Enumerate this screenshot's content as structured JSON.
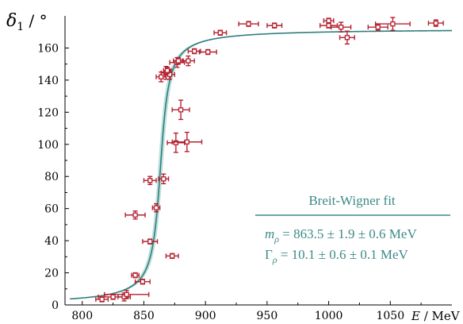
{
  "colors": {
    "points": "#b5202f",
    "fit_curve": "#2f7f7c",
    "fit_band": "#9ccfcb",
    "legend_text": "#3d8a86",
    "axis": "#000000"
  },
  "legend": {
    "title": "Breit-Wigner fit",
    "m_symbol": "m",
    "m_sub": "ρ",
    "m_value": " = 863.5 ± 1.9 ± 0.6 MeV",
    "g_symbol": "Γ",
    "g_sub": "ρ",
    "g_value": " = 10.1 ± 0.6 ± 0.1 MeV"
  },
  "chart_data": {
    "type": "scatter",
    "title": "",
    "xlabel_symbol": "E",
    "xlabel_unit": " / MeV",
    "ylabel_symbol": "δ",
    "ylabel_sub": "1",
    "ylabel_unit": " / °",
    "xlim": [
      786,
      1100
    ],
    "ylim": [
      0,
      180
    ],
    "xticks": [
      800,
      850,
      900,
      950,
      1000,
      1050
    ],
    "yticks": [
      0,
      20,
      40,
      60,
      80,
      100,
      120,
      140,
      160
    ],
    "grid": false,
    "fit": {
      "model": "Breit-Wigner",
      "mass": 863.5,
      "width": 10.1,
      "plateau": 172
    },
    "points": [
      {
        "x": 816,
        "y": 3.5,
        "xerr": 5,
        "yerr": 1.5
      },
      {
        "x": 825,
        "y": 5,
        "xerr": 12,
        "yerr": 1.5
      },
      {
        "x": 834,
        "y": 5,
        "xerr": 5,
        "yerr": 2.5
      },
      {
        "x": 836,
        "y": 6.5,
        "xerr": 18,
        "yerr": 2.5
      },
      {
        "x": 843,
        "y": 18.5,
        "xerr": 3,
        "yerr": 1.5
      },
      {
        "x": 849,
        "y": 14.5,
        "xerr": 6,
        "yerr": 1.5
      },
      {
        "x": 843,
        "y": 56,
        "xerr": 8,
        "yerr": 2.5
      },
      {
        "x": 855,
        "y": 39.5,
        "xerr": 6,
        "yerr": 1.5
      },
      {
        "x": 855,
        "y": 77.5,
        "xerr": 5,
        "yerr": 2.5
      },
      {
        "x": 860,
        "y": 60.5,
        "xerr": 3,
        "yerr": 2.5
      },
      {
        "x": 866,
        "y": 78.5,
        "xerr": 4,
        "yerr": 3
      },
      {
        "x": 873,
        "y": 30.5,
        "xerr": 5,
        "yerr": 1.5
      },
      {
        "x": 864,
        "y": 142,
        "xerr": 4,
        "yerr": 3
      },
      {
        "x": 868,
        "y": 144.5,
        "xerr": 4,
        "yerr": 4
      },
      {
        "x": 871,
        "y": 143.5,
        "xerr": 4,
        "yerr": 3
      },
      {
        "x": 869,
        "y": 146,
        "xerr": 3,
        "yerr": 2
      },
      {
        "x": 877,
        "y": 151,
        "xerr": 6,
        "yerr": 3
      },
      {
        "x": 878,
        "y": 152,
        "xerr": 4,
        "yerr": 2
      },
      {
        "x": 880,
        "y": 121.5,
        "xerr": 7,
        "yerr": 6
      },
      {
        "x": 876,
        "y": 101,
        "xerr": 7,
        "yerr": 6
      },
      {
        "x": 885,
        "y": 101.5,
        "xerr": 12,
        "yerr": 6
      },
      {
        "x": 886,
        "y": 152,
        "xerr": 5,
        "yerr": 3
      },
      {
        "x": 891,
        "y": 158,
        "xerr": 5,
        "yerr": 1.5
      },
      {
        "x": 902,
        "y": 157.5,
        "xerr": 7,
        "yerr": 1.5
      },
      {
        "x": 912,
        "y": 169.5,
        "xerr": 5,
        "yerr": 1.5
      },
      {
        "x": 935,
        "y": 175,
        "xerr": 8,
        "yerr": 1.5
      },
      {
        "x": 956,
        "y": 174,
        "xerr": 6,
        "yerr": 1.5
      },
      {
        "x": 1000,
        "y": 177,
        "xerr": 4,
        "yerr": 1.5
      },
      {
        "x": 1000,
        "y": 174,
        "xerr": 7,
        "yerr": 1.5
      },
      {
        "x": 1010,
        "y": 173,
        "xerr": 8,
        "yerr": 3
      },
      {
        "x": 1015,
        "y": 166.5,
        "xerr": 6,
        "yerr": 4
      },
      {
        "x": 1040,
        "y": 173,
        "xerr": 8,
        "yerr": 2
      },
      {
        "x": 1052,
        "y": 175,
        "xerr": 14,
        "yerr": 4
      },
      {
        "x": 1087,
        "y": 175.5,
        "xerr": 6,
        "yerr": 2
      }
    ]
  }
}
